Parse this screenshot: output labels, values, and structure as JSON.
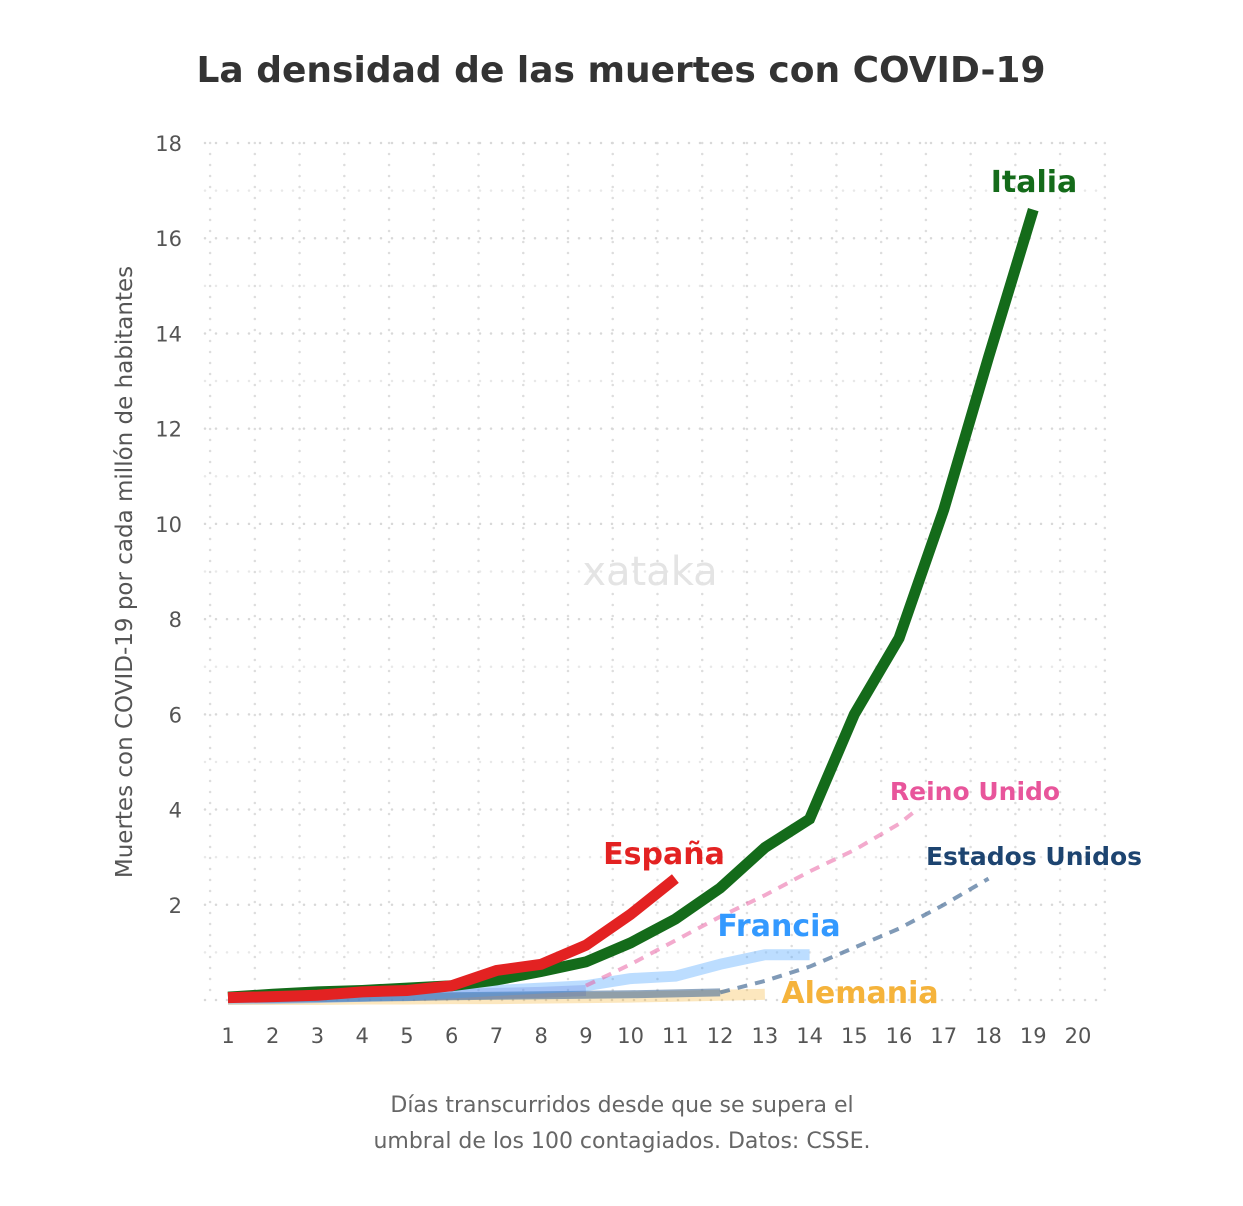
{
  "chart_data": {
    "type": "line",
    "title": "La densidad de las muertes con COVID-19",
    "ylabel": "Muertes con COVID-19 por cada millón de habitantes",
    "xlabel_lines": [
      "Días transcurridos desde que se supera el",
      "umbral de los 100 contagiados. Datos: CSSE."
    ],
    "watermark": "xataka",
    "xlim": [
      1,
      20
    ],
    "ylim": [
      0,
      18
    ],
    "x_ticks": [
      1,
      2,
      3,
      4,
      5,
      6,
      7,
      8,
      9,
      10,
      11,
      12,
      13,
      14,
      15,
      16,
      17,
      18,
      19,
      20
    ],
    "y_ticks": [
      2,
      4,
      6,
      8,
      10,
      12,
      14,
      16,
      18
    ],
    "grid": true,
    "series": [
      {
        "name": "Alemania",
        "color": "#f5b73b",
        "style": "faint",
        "x": [
          1,
          2,
          3,
          4,
          5,
          6,
          7,
          8,
          9,
          10,
          11,
          12,
          13
        ],
        "y": [
          0.01,
          0.01,
          0.01,
          0.02,
          0.02,
          0.03,
          0.03,
          0.04,
          0.05,
          0.06,
          0.08,
          0.1,
          0.12
        ]
      },
      {
        "name": "",
        "color": "#8a7fd0",
        "style": "faint",
        "x": [
          1,
          2,
          3,
          4,
          5,
          6,
          7,
          8,
          9
        ],
        "y": [
          0.05,
          0.05,
          0.06,
          0.08,
          0.1,
          0.12,
          0.14,
          0.16,
          0.2
        ]
      },
      {
        "name": "Estados Unidos",
        "color": "#4a6f99",
        "style": "solid-then-dashed",
        "x": [
          1,
          2,
          3,
          4,
          5,
          6,
          7,
          8,
          9,
          10,
          11,
          12,
          13,
          14,
          15,
          16,
          17,
          18
        ],
        "y": [
          0.03,
          0.03,
          0.04,
          0.05,
          0.06,
          0.08,
          0.09,
          0.1,
          0.11,
          0.12,
          0.14,
          0.16,
          0.4,
          0.7,
          1.1,
          1.5,
          2.0,
          2.55
        ],
        "dash_from": 12
      },
      {
        "name": "Francia",
        "color": "#3399ff",
        "style": "faint",
        "x": [
          1,
          2,
          3,
          4,
          5,
          6,
          7,
          8,
          9,
          10,
          11,
          12,
          13,
          14
        ],
        "y": [
          0.02,
          0.03,
          0.05,
          0.08,
          0.1,
          0.15,
          0.2,
          0.25,
          0.3,
          0.45,
          0.5,
          0.75,
          0.95,
          0.95
        ]
      },
      {
        "name": "Reino Unido",
        "color": "#e8559b",
        "style": "dashed",
        "x": [
          9,
          10,
          11,
          12,
          13,
          14,
          15,
          16,
          16.4
        ],
        "y": [
          0.3,
          0.75,
          1.25,
          1.75,
          2.2,
          2.7,
          3.15,
          3.7,
          4.0
        ]
      },
      {
        "name": "Italia",
        "color": "#146b1a",
        "style": "solid",
        "x": [
          1,
          2,
          3,
          4,
          5,
          6,
          7,
          8,
          9,
          10,
          11,
          12,
          13,
          14,
          15,
          16,
          17,
          18,
          19
        ],
        "y": [
          0.06,
          0.12,
          0.17,
          0.2,
          0.25,
          0.3,
          0.42,
          0.6,
          0.8,
          1.2,
          1.7,
          2.35,
          3.2,
          3.8,
          6.0,
          7.6,
          10.3,
          13.5,
          16.6
        ]
      },
      {
        "name": "España",
        "color": "#e32222",
        "style": "solid",
        "x": [
          1,
          2,
          3,
          4,
          5,
          6,
          7,
          8,
          9,
          10,
          11
        ],
        "y": [
          0.05,
          0.07,
          0.1,
          0.17,
          0.2,
          0.3,
          0.62,
          0.75,
          1.15,
          1.8,
          2.55
        ]
      }
    ]
  }
}
